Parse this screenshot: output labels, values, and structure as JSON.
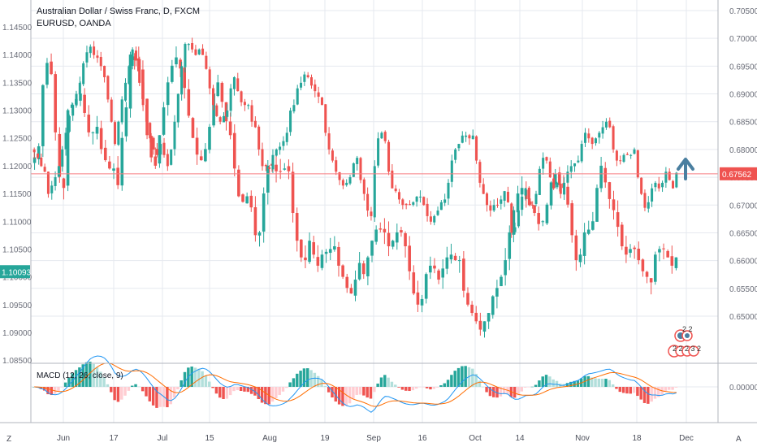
{
  "header": {
    "title": "Australian Dollar / Swiss Franc, D, FXCM",
    "subtitle": "EURUSD, OANDA"
  },
  "macd": {
    "label": "MACD (12, 26, close, 9)",
    "zero_label": "0.00000"
  },
  "footer": {
    "z_label": "Z",
    "a_label": "A"
  },
  "colors": {
    "up": "#26a69a",
    "down": "#ef5350",
    "hist_up_strong": "#26a69a",
    "hist_up_weak": "#b2dfdb",
    "hist_down_strong": "#ef5350",
    "hist_down_weak": "#ffcdd2",
    "macd_line": "#2196f3",
    "signal_line": "#ff6d00",
    "price_line": "#f77c80",
    "arrow": "#4a7fa0",
    "grid": "#e6e9ef"
  },
  "icons": {
    "arrow": "up-arrow-icon",
    "signal_badges": "signal-badges-icon"
  },
  "chart_data": {
    "type": "candlestick",
    "right_axis": {
      "label_values": [
        "0.70500",
        "0.70000",
        "0.69500",
        "0.69000",
        "0.68500",
        "0.68000",
        "0.67500",
        "0.67000",
        "0.66500",
        "0.66000",
        "0.65500",
        "0.65000"
      ],
      "current_price": "0.67562"
    },
    "left_axis": {
      "label_values": [
        "1.14500",
        "1.14000",
        "1.13500",
        "1.13000",
        "1.12500",
        "1.12000",
        "1.11500",
        "1.11000",
        "1.10500",
        "1.10000",
        "1.09500",
        "1.09000",
        "1.08500"
      ],
      "current_price": "1.10093"
    },
    "x_labels": [
      "Jun",
      "17",
      "Jul",
      "15",
      "Aug",
      "19",
      "Sep",
      "16",
      "Oct",
      "14",
      "Nov",
      "18",
      "Dec"
    ],
    "badge_text": [
      "2 2",
      "2 2 2 3 2"
    ],
    "audchf_close": [
      0.6795,
      0.6785,
      0.677,
      0.676,
      0.672,
      0.6735,
      0.675,
      0.677,
      0.68,
      0.683,
      0.686,
      0.688,
      0.69,
      0.692,
      0.6955,
      0.6975,
      0.6985,
      0.697,
      0.6965,
      0.695,
      0.693,
      0.689,
      0.685,
      0.681,
      0.685,
      0.689,
      0.692,
      0.695,
      0.698,
      0.696,
      0.692,
      0.688,
      0.685,
      0.682,
      0.68,
      0.679,
      0.681,
      0.679,
      0.677,
      0.68,
      0.685,
      0.69,
      0.695,
      0.699,
      0.699,
      0.698,
      0.697,
      0.698,
      0.697,
      0.6945,
      0.691,
      0.688,
      0.686,
      0.685,
      0.686,
      0.687,
      0.691,
      0.693,
      0.6905,
      0.6885,
      0.688,
      0.688,
      0.685,
      0.684,
      0.68,
      0.677,
      0.677,
      0.6765,
      0.679,
      0.68,
      0.6805,
      0.6815,
      0.683,
      0.687,
      0.688,
      0.691,
      0.692,
      0.6935,
      0.693,
      0.6915,
      0.6905,
      0.6895,
      0.688,
      0.683,
      0.68,
      0.678,
      0.676,
      0.6745,
      0.6735,
      0.674,
      0.675,
      0.6775,
      0.6785,
      0.6745,
      0.672,
      0.669,
      0.668,
      0.677,
      0.682,
      0.683,
      0.6815,
      0.676,
      0.673,
      0.6725,
      0.671,
      0.67,
      0.67,
      0.67,
      0.6705,
      0.6715,
      0.6715,
      0.67,
      0.668,
      0.667,
      0.668,
      0.669,
      0.6705,
      0.671,
      0.674,
      0.678,
      0.68,
      0.681,
      0.6825,
      0.6825,
      0.682,
      0.6825,
      0.678,
      0.674,
      0.672,
      0.67,
      0.669,
      0.67,
      0.67,
      0.671,
      0.6725,
      0.6705,
      0.665,
      0.666,
      0.669,
      0.6715,
      0.673,
      0.67,
      0.67,
      0.672,
      0.6765,
      0.6785,
      0.678,
      0.675,
      0.673,
      0.674,
      0.672,
      0.674,
      0.676,
      0.677,
      0.6775,
      0.678,
      0.681,
      0.683,
      0.682,
      0.681,
      0.682,
      0.683,
      0.684,
      0.685,
      0.684,
      0.68,
      0.678,
      0.678,
      0.679,
      0.679,
      0.679,
      0.68,
      0.675,
      0.672,
      0.6695,
      0.6705,
      0.673,
      0.674,
      0.673,
      0.674,
      0.676,
      0.6745,
      0.673,
      0.6758
    ],
    "eurusd_close": [
      1.1215,
      1.1235,
      1.1345,
      1.1385,
      1.1365,
      1.126,
      1.118,
      1.116,
      1.13,
      1.131,
      1.132,
      1.133,
      1.1295,
      1.126,
      1.126,
      1.127,
      1.123,
      1.121,
      1.1195,
      1.1195,
      1.1165,
      1.125,
      1.1305,
      1.14,
      1.139,
      1.137,
      1.132,
      1.1255,
      1.1215,
      1.12,
      1.1255,
      1.1305,
      1.135,
      1.138,
      1.1395,
      1.1375,
      1.134,
      1.129,
      1.125,
      1.122,
      1.121,
      1.123,
      1.127,
      1.133,
      1.135,
      1.1315,
      1.128,
      1.1255,
      1.1195,
      1.1145,
      1.1135,
      1.1145,
      1.1125,
      1.1075,
      1.108,
      1.115,
      1.12,
      1.12,
      1.119,
      1.119,
      1.1195,
      1.119,
      1.1115,
      1.1065,
      1.1035,
      1.103,
      1.1065,
      1.104,
      1.102,
      1.104,
      1.1045,
      1.105,
      1.1055,
      1.102,
      1.1,
      1.098,
      1.097,
      1.0995,
      1.1025,
      1.1005,
      1.1035,
      1.1065,
      1.1085,
      1.1085,
      1.108,
      1.1055,
      1.1065,
      1.108,
      1.108,
      1.1055,
      1.101,
      1.097,
      1.095,
      1.096,
      1.1005,
      1.102,
      1.1015,
      1.0995,
      1.1015,
      1.1035,
      1.104,
      1.103,
      1.103,
      1.0975,
      1.095,
      1.0935,
      1.092,
      1.0905,
      1.092,
      1.0935,
      1.0965,
      1.098,
      1.1,
      1.103,
      1.108,
      1.112,
      1.115,
      1.116,
      1.114,
      1.113,
      1.1115,
      1.1095,
      1.11,
      1.113,
      1.117,
      1.1185,
      1.1165,
      1.116,
      1.113,
      1.1075,
      1.103,
      1.104,
      1.108,
      1.1085,
      1.11,
      1.116,
      1.12,
      1.117,
      1.114,
      1.112,
      1.109,
      1.1055,
      1.104,
      1.105,
      1.105,
      1.103,
      1.101,
      1.1,
      1.099,
      1.104,
      1.105,
      1.105,
      1.1035,
      1.102,
      1.1035
    ]
  }
}
